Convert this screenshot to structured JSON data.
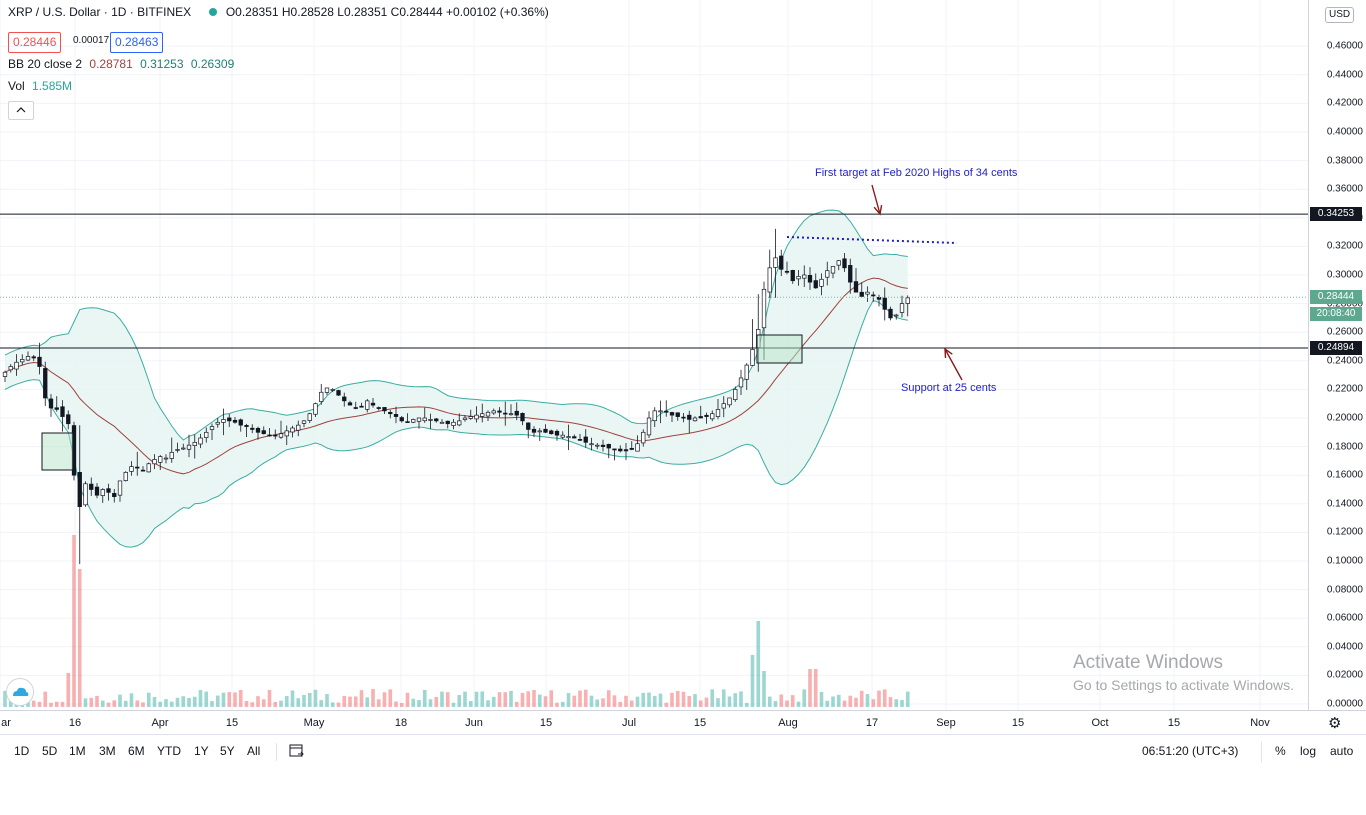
{
  "legend": {
    "title": "XRP / U.S. Dollar · 1D · BITFINEX",
    "ohlc": "O0.28351 H0.28528 L0.28351 C0.28444 +0.00102 (+0.36%)",
    "bid": "0.28446",
    "spread": "0.00017",
    "ask": "0.28463",
    "bb_label": "BB 20 close 2",
    "bb_basis": "0.28781",
    "bb_upper": "0.31253",
    "bb_lower": "0.26309",
    "vol_label": "Vol",
    "vol_value": "1.585M"
  },
  "price_axis": {
    "currency": "USD",
    "labels": [
      "0.46000",
      "0.44000",
      "0.42000",
      "0.40000",
      "0.38000",
      "0.36000",
      "0.34000",
      "0.32000",
      "0.30000",
      "0.28000",
      "0.26000",
      "0.24000",
      "0.22000",
      "0.20000",
      "0.18000",
      "0.16000",
      "0.14000",
      "0.12000",
      "0.10000",
      "0.08000",
      "0.06000",
      "0.04000",
      "0.02000",
      "0.00000"
    ],
    "resistance_badge": "0.34253",
    "last_price_badge": "0.28444",
    "countdown_badge": "20:08:40",
    "support_badge": "0.24894"
  },
  "time_axis": [
    "ar",
    "16",
    "Apr",
    "15",
    "May",
    "18",
    "Jun",
    "15",
    "Jul",
    "15",
    "Aug",
    "17",
    "Sep",
    "15",
    "Oct",
    "15",
    "Nov"
  ],
  "annotations": {
    "target": "First target at Feb 2020 Highs of 34 cents",
    "support": "Support at 25 cents"
  },
  "watermark": {
    "title": "Activate Windows",
    "subtitle": "Go to Settings to activate Windows."
  },
  "bottom_bar": {
    "ranges": [
      "1D",
      "5D",
      "1M",
      "3M",
      "6M",
      "YTD",
      "1Y",
      "5Y",
      "All"
    ],
    "clock": "06:51:20 (UTC+3)",
    "percent": "%",
    "log": "log",
    "auto": "auto"
  },
  "colors": {
    "up": "#26a69a",
    "down": "#ef5350",
    "band_fill": "#e3f4f1",
    "band_line": "#3bada3",
    "basis": "#a0423e",
    "annotation": "#1e1ec8",
    "arrow": "#8b1a1a"
  },
  "chart_data": {
    "type": "candlestick",
    "symbol": "XRP / U.S. Dollar",
    "interval": "1D",
    "exchange": "BITFINEX",
    "ylim": [
      0,
      0.47
    ],
    "horizontal_levels": [
      0.34253,
      0.24894
    ],
    "last_price": 0.28444,
    "close_series": [
      0.232,
      0.236,
      0.239,
      0.241,
      0.243,
      0.242,
      0.236,
      0.214,
      0.207,
      0.206,
      0.201,
      0.196,
      0.16,
      0.138,
      0.154,
      0.15,
      0.146,
      0.15,
      0.148,
      0.145,
      0.156,
      0.162,
      0.166,
      0.165,
      0.163,
      0.168,
      0.171,
      0.173,
      0.172,
      0.176,
      0.178,
      0.179,
      0.181,
      0.183,
      0.186,
      0.19,
      0.194,
      0.197,
      0.199,
      0.198,
      0.197,
      0.195,
      0.194,
      0.192,
      0.19,
      0.189,
      0.188,
      0.188,
      0.189,
      0.191,
      0.193,
      0.195,
      0.198,
      0.203,
      0.21,
      0.218,
      0.221,
      0.22,
      0.216,
      0.212,
      0.209,
      0.207,
      0.208,
      0.212,
      0.209,
      0.207,
      0.205,
      0.203,
      0.201,
      0.198,
      0.197,
      0.199,
      0.2,
      0.2,
      0.199,
      0.198,
      0.197,
      0.196,
      0.197,
      0.198,
      0.2,
      0.201,
      0.202,
      0.203,
      0.204,
      0.205,
      0.204,
      0.203,
      0.203,
      0.202,
      0.198,
      0.192,
      0.19,
      0.191,
      0.19,
      0.189,
      0.188,
      0.188,
      0.187,
      0.186,
      0.185,
      0.183,
      0.182,
      0.181,
      0.18,
      0.179,
      0.178,
      0.177,
      0.177,
      0.178,
      0.182,
      0.19,
      0.2,
      0.205,
      0.205,
      0.204,
      0.202,
      0.201,
      0.2,
      0.199,
      0.2,
      0.2,
      0.201,
      0.203,
      0.206,
      0.21,
      0.214,
      0.22,
      0.228,
      0.237,
      0.248,
      0.262,
      0.29,
      0.305,
      0.312,
      0.304,
      0.302,
      0.296,
      0.299,
      0.3,
      0.295,
      0.291,
      0.297,
      0.303,
      0.306,
      0.31,
      0.305,
      0.295,
      0.288,
      0.285,
      0.288,
      0.286,
      0.283,
      0.276,
      0.27,
      0.272,
      0.28,
      0.284
    ]
  }
}
